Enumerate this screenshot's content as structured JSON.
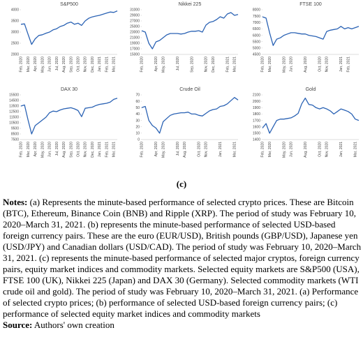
{
  "chart_data": [
    {
      "type": "line",
      "title": "S&P500",
      "color": "#2a62b4",
      "ylim": [
        2000,
        4000
      ],
      "yticks": [
        2000,
        2500,
        3000,
        3500,
        4000
      ],
      "categories": [
        "Feb, 2020",
        null,
        "Mar, 2020",
        null,
        "Apr, 2020",
        null,
        "May, 2020",
        null,
        "Jun, 2020",
        null,
        "Jul, 2020",
        null,
        "Aug, 2020",
        null,
        "Sep, 2020",
        null,
        "Oct, 2020",
        null,
        "Nov, 2020",
        null,
        "Dec, 2020",
        null,
        "Jan, 2021",
        null,
        "Feb, 2021",
        null,
        "Mar, 2021",
        null
      ],
      "values": [
        3350,
        3370,
        2900,
        2450,
        2700,
        2850,
        2880,
        2950,
        3000,
        3100,
        3150,
        3250,
        3300,
        3400,
        3450,
        3350,
        3400,
        3300,
        3500,
        3620,
        3680,
        3720,
        3750,
        3800,
        3850,
        3900,
        3880,
        3950
      ]
    },
    {
      "type": "line",
      "title": "Nikkei 225",
      "color": "#2a62b4",
      "ylim": [
        15000,
        31000
      ],
      "yticks": [
        15000,
        17000,
        19000,
        21000,
        23000,
        25000,
        27000,
        29000,
        31000
      ],
      "categories": [
        "Feb, 2020",
        null,
        null,
        null,
        "Apr, 2020",
        null,
        "May, 2020",
        null,
        null,
        null,
        "Jul, 2020",
        null,
        null,
        null,
        "Sep, 2020",
        null,
        null,
        null,
        "Nov, 2020",
        null,
        "Dec, 2020",
        null,
        null,
        null,
        "Feb, 2021",
        null,
        "Mar, 2021",
        null
      ],
      "values": [
        23500,
        23000,
        19000,
        17000,
        19500,
        20000,
        21000,
        22000,
        22500,
        22500,
        22500,
        22300,
        22500,
        23000,
        23300,
        23300,
        23500,
        23000,
        25500,
        26500,
        26800,
        27500,
        28500,
        28000,
        29500,
        30000,
        29000,
        29300
      ]
    },
    {
      "type": "line",
      "title": "FTSE 100",
      "color": "#2a62b4",
      "ylim": [
        4500,
        8000
      ],
      "yticks": [
        4500,
        5000,
        5500,
        6000,
        6500,
        7000,
        7500,
        8000
      ],
      "categories": [
        "Feb, 2020",
        null,
        "Mar, 2020",
        null,
        null,
        null,
        "May, 2020",
        null,
        "Jun, 2020",
        null,
        null,
        null,
        "Aug, 2020",
        null,
        null,
        null,
        "Oct, 2020",
        null,
        "Nov, 2020",
        null,
        null,
        null,
        "Jan, 2021",
        null,
        "Feb, 2021",
        null,
        null,
        null
      ],
      "values": [
        7450,
        7350,
        6200,
        5200,
        5700,
        5800,
        6000,
        6100,
        6200,
        6200,
        6150,
        6100,
        6100,
        6000,
        5950,
        5900,
        5800,
        5700,
        6300,
        6400,
        6450,
        6500,
        6700,
        6500,
        6600,
        6500,
        6600,
        6700
      ]
    },
    {
      "type": "line",
      "title": "DAX 30",
      "color": "#2a62b4",
      "ylim": [
        7500,
        15500
      ],
      "yticks": [
        7500,
        8500,
        9500,
        10500,
        11500,
        12500,
        13500,
        14500,
        15500
      ],
      "categories": [
        "Feb, 2020",
        null,
        "Mar, 2020",
        null,
        "Apr, 2020",
        null,
        "May, 2020",
        null,
        "Jun, 2020",
        null,
        "Jul, 2020",
        null,
        "Aug, 2020",
        null,
        "Sep, 2020",
        null,
        "Oct, 2020",
        null,
        "Nov, 2020",
        null,
        "Dec, 2020",
        null,
        "Jan, 2021",
        null,
        "Feb, 2021",
        null,
        "Mar, 2021",
        null
      ],
      "values": [
        13500,
        13700,
        11000,
        8500,
        10000,
        10500,
        11000,
        11500,
        12300,
        12600,
        12500,
        12800,
        13000,
        13100,
        13200,
        13000,
        12700,
        11600,
        13100,
        13200,
        13300,
        13600,
        13800,
        13900,
        14000,
        14200,
        14700,
        14900
      ]
    },
    {
      "type": "line",
      "title": "Crude Oil",
      "color": "#2a62b4",
      "ylim": [
        0,
        70
      ],
      "yticks": [
        0,
        10,
        20,
        30,
        40,
        50,
        60,
        70
      ],
      "categories": [
        "Feb, 2020",
        null,
        null,
        null,
        "Apr, 2020",
        null,
        "May, 2020",
        null,
        null,
        null,
        "Jul, 2020",
        null,
        "Aug, 2020",
        null,
        null,
        null,
        "Oct, 2020",
        null,
        "Nov, 2020",
        null,
        null,
        null,
        "Jan, 2021",
        null,
        null,
        null,
        "Mar, 2021",
        null
      ],
      "values": [
        50,
        52,
        30,
        22,
        18,
        10,
        28,
        33,
        38,
        40,
        41,
        42,
        42,
        43,
        40,
        40,
        38,
        37,
        41,
        45,
        47,
        48,
        52,
        53,
        56,
        61,
        66,
        62
      ]
    },
    {
      "type": "line",
      "title": "Gold",
      "color": "#2a62b4",
      "ylim": [
        1400,
        2100
      ],
      "yticks": [
        1400,
        1500,
        1600,
        1700,
        1800,
        1900,
        2000,
        2100
      ],
      "categories": [
        "Feb, 2020",
        null,
        "Mar, 2020",
        null,
        null,
        null,
        "May, 2020",
        null,
        "Jun, 2020",
        null,
        null,
        null,
        "Aug, 2020",
        null,
        null,
        null,
        "Oct, 2020",
        null,
        "Nov, 2020",
        null,
        null,
        null,
        "Jan, 2021",
        null,
        null,
        null,
        "Mar, 2021",
        null
      ],
      "values": [
        1580,
        1650,
        1500,
        1600,
        1700,
        1720,
        1720,
        1730,
        1740,
        1770,
        1810,
        1960,
        2050,
        1950,
        1940,
        1900,
        1880,
        1900,
        1880,
        1850,
        1800,
        1840,
        1880,
        1860,
        1840,
        1800,
        1720,
        1700
      ]
    }
  ],
  "figure_label": "(c)",
  "notes": {
    "label": "Notes:",
    "text": "(a) Represents the minute-based performance of selected crypto prices. These are Bitcoin (BTC), Ethereum, Binance Coin (BNB) and Ripple (XRP). The period of study was February 10, 2020–March 31, 2021. (b) represents the minute-based performance of selected USD-based foreign currency pairs. These are the euro (EUR/USD), British pounds (GBP/USD), Japanese yen (USD/JPY) and Canadian dollars (USD/CAD). The period of study was February 10, 2020–March 31, 2021. (c) represents the minute-based performance of selected major cryptos, foreign currency pairs, equity market indices and commodity markets. Selected equity markets are S&P500 (USA), FTSE 100 (UK), Nikkei 225 (Japan) and DAX 30 (Germany). Selected commodity markets (WTI crude oil and gold). The period of study was February 10, 2020–March 31, 2021. (a) Performance of selected crypto prices; (b) performance of selected USD-based foreign currency pairs; (c) performance of selected equity market indices and commodity markets"
  },
  "source": {
    "label": "Source:",
    "text": "Authors' own creation"
  }
}
